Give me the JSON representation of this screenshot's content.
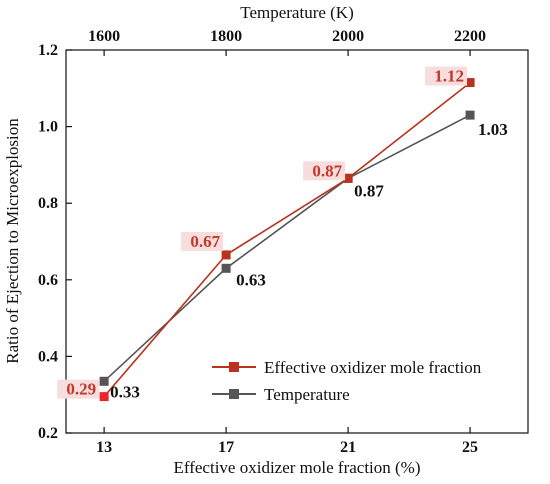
{
  "chart_data": {
    "type": "line",
    "xlabel": "Effective oxidizer mole fraction (%)",
    "x2label": "Temperature (K)",
    "ylabel": "Ratio of Ejection to Microexplosion",
    "x": [
      13,
      17,
      21,
      25
    ],
    "x_tick_labels": [
      "13",
      "17",
      "21",
      "25"
    ],
    "x2_tick_labels": [
      "1600",
      "1800",
      "2000",
      "2200"
    ],
    "ylim": [
      0.2,
      1.2
    ],
    "y_ticks": [
      0.2,
      0.4,
      0.6,
      0.8,
      1.0,
      1.2
    ],
    "y_tick_labels": [
      "0.2",
      "0.4",
      "0.6",
      "0.8",
      "1.0",
      "1.2"
    ],
    "grid": false,
    "legend_position": "bottom-right",
    "series": [
      {
        "name": "Effective oxidizer mole fraction",
        "color": "#b8321e",
        "marker_colors": [
          "#e8262b",
          "#b8321e",
          "#b8321e",
          "#b8321e"
        ],
        "values": [
          0.295,
          0.665,
          0.865,
          1.115
        ],
        "labels": [
          "0.29",
          "0.67",
          "0.87",
          "1.12"
        ],
        "label_color": "#c0392b",
        "label_bg": "#f7dddd"
      },
      {
        "name": "Temperature",
        "color": "#555555",
        "marker_colors": [
          "#555555",
          "#555555",
          "#555555",
          "#555555"
        ],
        "values": [
          0.335,
          0.63,
          0.865,
          1.03
        ],
        "labels": [
          "0.33",
          "0.63",
          "0.87",
          "1.03"
        ],
        "label_color": "#111111"
      }
    ]
  }
}
